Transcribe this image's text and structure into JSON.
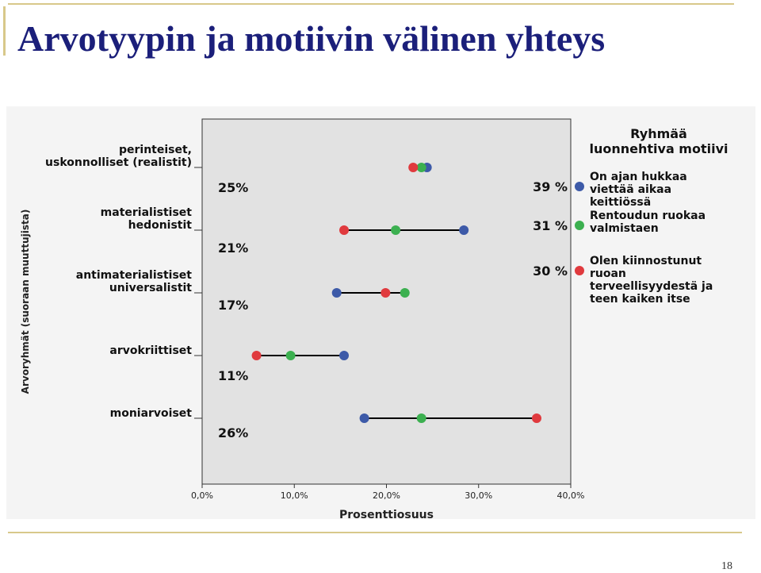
{
  "slide": {
    "title": "Arvotyypin ja motiivin välinen yhteys",
    "page_number": "18"
  },
  "colors": {
    "blue": "#3d5aa8",
    "green": "#3cb050",
    "red": "#e03a3e",
    "title": "#1b1f7a",
    "plot_bg": "#e2e2e2"
  },
  "chart_data": {
    "type": "scatter",
    "xlabel": "Prosenttiosuus",
    "ylabel": "Arvoryhmät (suoraan muuttujista)",
    "xlim": [
      0,
      40
    ],
    "xticks": [
      "0,0%",
      "10,0%",
      "20,0%",
      "30,0%",
      "40,0%"
    ],
    "categories": [
      {
        "label_lines": [
          "perinteiset,",
          "uskonnolliset (realistit)"
        ],
        "share": "25%"
      },
      {
        "label_lines": [
          "materialistiset",
          "hedonistit"
        ],
        "share": "21%"
      },
      {
        "label_lines": [
          "antimaterialistiset",
          "universalistit"
        ],
        "share": "17%"
      },
      {
        "label_lines": [
          "arvokriittiset"
        ],
        "share": "11%"
      },
      {
        "label_lines": [
          "moniarvoiset"
        ],
        "share": "26%"
      }
    ],
    "series": [
      {
        "key": "blue",
        "legend_lines": [
          "On ajan hukkaa",
          "viettää aikaa",
          "keittiössä"
        ],
        "total": "39 %",
        "values": [
          24.4,
          28.4,
          14.6,
          15.4,
          17.6
        ]
      },
      {
        "key": "green",
        "legend_lines": [
          "Rentoudun ruokaa",
          "valmistaen"
        ],
        "total": "31 %",
        "values": [
          23.8,
          21.0,
          22.0,
          9.6,
          23.8
        ]
      },
      {
        "key": "red",
        "legend_lines": [
          "Olen kiinnostunut",
          "ruoan",
          "terveellisyydestä ja",
          "teen kaiken itse"
        ],
        "total": "30 %",
        "values": [
          22.9,
          15.4,
          19.9,
          5.9,
          36.3
        ]
      }
    ],
    "legend": {
      "title_lines": [
        "Ryhmää",
        "luonnehtiva motiivi"
      ],
      "position": "right"
    },
    "grid": false
  }
}
